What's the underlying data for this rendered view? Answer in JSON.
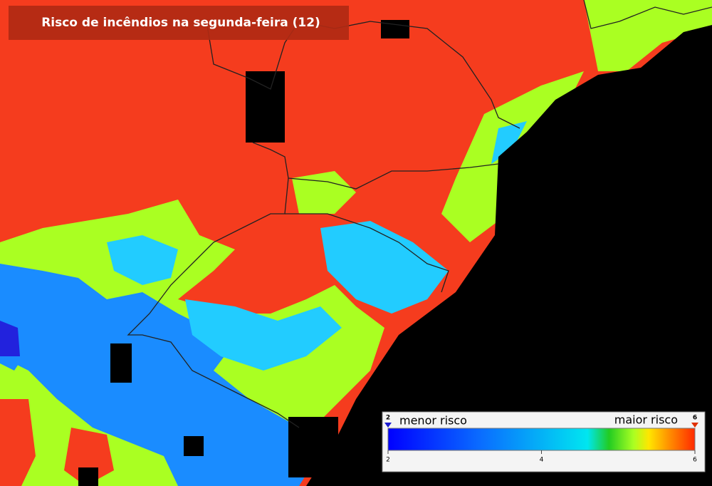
{
  "header": {
    "title": "Risco de incêndios na segunda-feira (12)"
  },
  "legend": {
    "low_label": "menor risco",
    "high_label": "maior risco",
    "min": 2,
    "max": 6,
    "ticks": [
      2,
      4,
      6
    ]
  }
}
